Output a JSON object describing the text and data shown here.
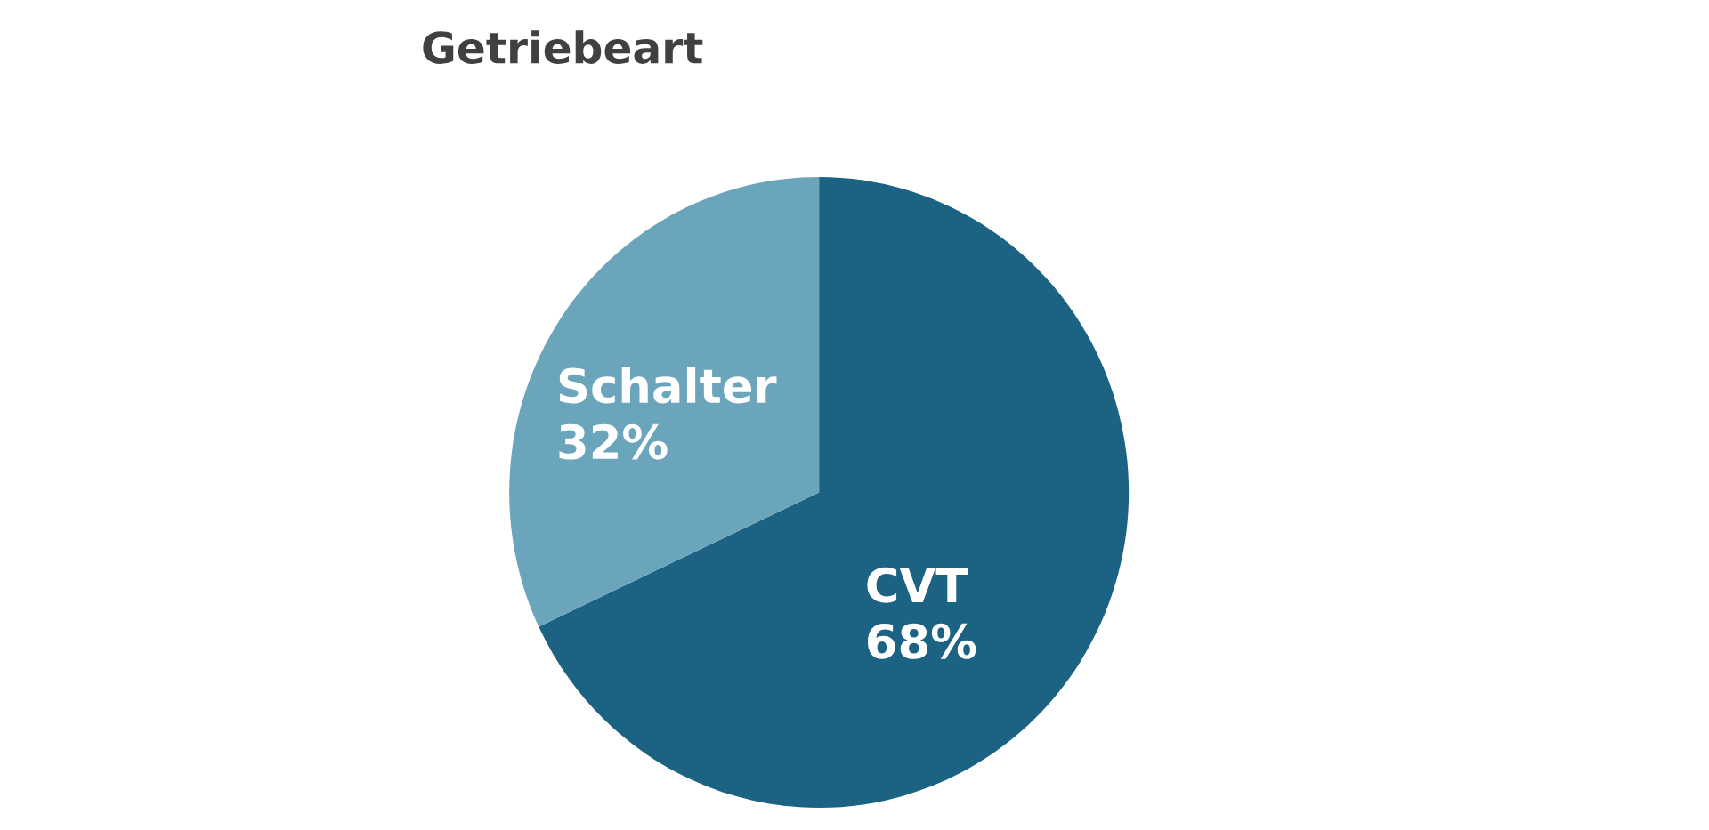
{
  "chart_data": {
    "type": "pie",
    "title": "Getriebeart",
    "categories": [
      "CVT",
      "Schalter"
    ],
    "values": [
      68,
      32
    ],
    "colors": [
      "#1b6283",
      "#6ba5bc"
    ],
    "value_labels": [
      "68%",
      "32%"
    ]
  }
}
